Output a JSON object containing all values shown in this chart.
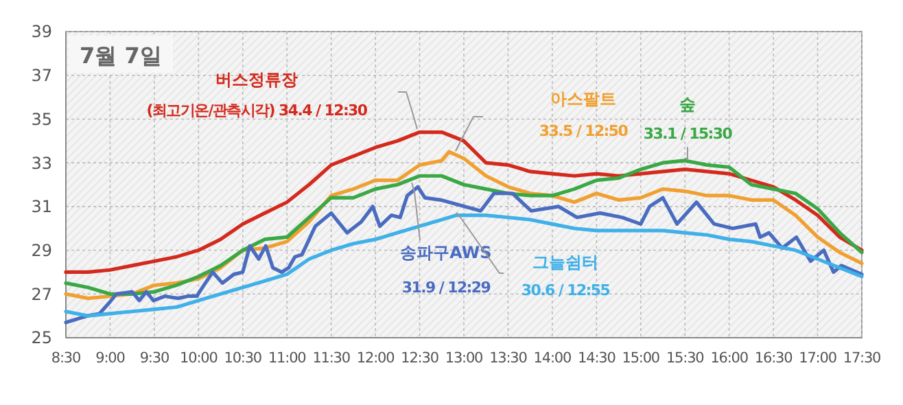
{
  "chart_data": {
    "type": "line",
    "title": "7월 7일",
    "xlim": [
      8.5,
      17.5
    ],
    "xticks": [
      {
        "value": 8.5,
        "label": "8:30"
      },
      {
        "value": 9,
        "label": "9:00"
      },
      {
        "value": 9.5,
        "label": "9:30"
      },
      {
        "value": 10,
        "label": "10:00"
      },
      {
        "value": 10.5,
        "label": "10:30"
      },
      {
        "value": 11,
        "label": "11:00"
      },
      {
        "value": 11.5,
        "label": "11:30"
      },
      {
        "value": 12,
        "label": "12:00"
      },
      {
        "value": 12.5,
        "label": "12:30"
      },
      {
        "value": 13,
        "label": "13:00"
      },
      {
        "value": 13.5,
        "label": "13:30"
      },
      {
        "value": 14,
        "label": "14:00"
      },
      {
        "value": 14.5,
        "label": "14:30"
      },
      {
        "value": 15,
        "label": "15:00"
      },
      {
        "value": 15.5,
        "label": "15:30"
      },
      {
        "value": 16,
        "label": "16:00"
      },
      {
        "value": 16.5,
        "label": "16:30"
      },
      {
        "value": 17,
        "label": "17:00"
      },
      {
        "value": 17.5,
        "label": "17:30"
      }
    ],
    "ylim": [
      25,
      39
    ],
    "yticks": [
      25,
      27,
      29,
      31,
      33,
      35,
      37,
      39
    ],
    "grid": true,
    "marker": "none",
    "line_style": "solid",
    "series": [
      {
        "name": "버스정류장",
        "color": "#d42a1e",
        "x": [
          8.5,
          8.75,
          9,
          9.25,
          9.5,
          9.75,
          10,
          10.25,
          10.5,
          10.75,
          11,
          11.25,
          11.5,
          11.75,
          12,
          12.25,
          12.5,
          12.75,
          13,
          13.25,
          13.5,
          13.75,
          14,
          14.25,
          14.5,
          14.75,
          15,
          15.25,
          15.5,
          15.75,
          16,
          16.25,
          16.5,
          16.75,
          17,
          17.25,
          17.5
        ],
        "values": [
          28.0,
          28.0,
          28.1,
          28.3,
          28.5,
          28.7,
          29.0,
          29.5,
          30.2,
          30.7,
          31.2,
          32.0,
          32.9,
          33.3,
          33.7,
          34.0,
          34.4,
          34.4,
          34.0,
          33.0,
          32.9,
          32.6,
          32.5,
          32.4,
          32.5,
          32.4,
          32.5,
          32.6,
          32.7,
          32.6,
          32.5,
          32.2,
          31.9,
          31.3,
          30.6,
          29.6,
          29.0
        ]
      },
      {
        "name": "아스팔트",
        "color": "#f0a030",
        "x": [
          8.5,
          8.75,
          9,
          9.25,
          9.5,
          9.75,
          10,
          10.25,
          10.5,
          10.75,
          11,
          11.25,
          11.5,
          11.75,
          12,
          12.25,
          12.5,
          12.75,
          12.833,
          13,
          13.25,
          13.5,
          13.75,
          14,
          14.25,
          14.5,
          14.75,
          15,
          15.25,
          15.5,
          15.75,
          16,
          16.25,
          16.5,
          16.75,
          17,
          17.25,
          17.5
        ],
        "values": [
          27.0,
          26.8,
          26.9,
          27.0,
          27.4,
          27.5,
          27.7,
          28.2,
          29.0,
          29.1,
          29.4,
          30.3,
          31.5,
          31.8,
          32.2,
          32.2,
          32.9,
          33.1,
          33.5,
          33.2,
          32.4,
          31.9,
          31.6,
          31.5,
          31.2,
          31.6,
          31.3,
          31.4,
          31.8,
          31.7,
          31.5,
          31.5,
          31.3,
          31.3,
          30.6,
          29.6,
          28.9,
          28.4
        ]
      },
      {
        "name": "숲",
        "color": "#3aa845",
        "x": [
          8.5,
          8.75,
          9,
          9.25,
          9.5,
          9.75,
          10,
          10.25,
          10.5,
          10.75,
          11,
          11.25,
          11.5,
          11.75,
          12,
          12.25,
          12.5,
          12.75,
          13,
          13.25,
          13.5,
          13.75,
          14,
          14.25,
          14.5,
          14.75,
          15,
          15.25,
          15.5,
          15.75,
          16,
          16.25,
          16.5,
          16.75,
          17,
          17.25,
          17.5
        ],
        "values": [
          27.5,
          27.3,
          27.0,
          27.0,
          27.1,
          27.4,
          27.8,
          28.3,
          29.0,
          29.5,
          29.6,
          30.5,
          31.4,
          31.4,
          31.8,
          32.0,
          32.4,
          32.4,
          32.0,
          31.8,
          31.6,
          31.5,
          31.5,
          31.8,
          32.2,
          32.3,
          32.7,
          33.0,
          33.1,
          32.9,
          32.8,
          32.0,
          31.8,
          31.6,
          30.9,
          29.8,
          28.9
        ]
      },
      {
        "name": "송파구AWS",
        "color": "#4a6cc0",
        "x": [
          8.5,
          8.74,
          8.88,
          8.99,
          9.07,
          9.25,
          9.33,
          9.41,
          9.49,
          9.62,
          9.77,
          9.88,
          9.98,
          10.06,
          10.16,
          10.27,
          10.4,
          10.5,
          10.58,
          10.68,
          10.76,
          10.84,
          10.94,
          11.02,
          11.09,
          11.17,
          11.32,
          11.5,
          11.68,
          11.84,
          11.97,
          12.05,
          12.18,
          12.28,
          12.36,
          12.48,
          12.56,
          12.74,
          13.19,
          13.34,
          13.55,
          13.76,
          14.07,
          14.28,
          14.54,
          14.79,
          15.0,
          15.1,
          15.25,
          15.41,
          15.63,
          15.83,
          16.04,
          16.3,
          16.35,
          16.45,
          16.6,
          16.76,
          16.92,
          17.07,
          17.18,
          17.27,
          17.5
        ],
        "values": [
          25.7,
          26.0,
          26.1,
          26.6,
          27.0,
          27.1,
          26.7,
          27.1,
          26.7,
          26.9,
          26.8,
          26.9,
          26.9,
          27.4,
          28.0,
          27.5,
          27.9,
          28.0,
          29.2,
          28.6,
          29.2,
          28.2,
          28.0,
          28.2,
          28.7,
          28.8,
          30.1,
          30.7,
          29.8,
          30.3,
          31.0,
          30.1,
          30.6,
          30.5,
          31.5,
          31.9,
          31.4,
          31.3,
          30.8,
          31.6,
          31.6,
          30.8,
          31.0,
          30.5,
          30.7,
          30.5,
          30.2,
          31.0,
          31.4,
          30.2,
          31.2,
          30.2,
          30.0,
          30.2,
          29.6,
          29.8,
          29.1,
          29.6,
          28.5,
          29.0,
          28.0,
          28.3,
          27.9
        ]
      },
      {
        "name": "그늘쉼터",
        "color": "#3fb0e8",
        "x": [
          8.5,
          8.75,
          9,
          9.25,
          9.5,
          9.75,
          10,
          10.25,
          10.5,
          10.75,
          11,
          11.25,
          11.5,
          11.75,
          12,
          12.25,
          12.5,
          12.75,
          12.917,
          13.25,
          13.5,
          13.75,
          14,
          14.25,
          14.5,
          14.75,
          15,
          15.25,
          15.5,
          15.75,
          16,
          16.25,
          16.5,
          16.75,
          17,
          17.25,
          17.5
        ],
        "values": [
          26.2,
          26.0,
          26.1,
          26.2,
          26.3,
          26.4,
          26.7,
          27.0,
          27.3,
          27.6,
          27.9,
          28.6,
          29.0,
          29.3,
          29.5,
          29.8,
          30.1,
          30.4,
          30.6,
          30.6,
          30.5,
          30.4,
          30.2,
          30.0,
          29.9,
          29.9,
          29.9,
          29.9,
          29.8,
          29.7,
          29.5,
          29.4,
          29.2,
          29.0,
          28.6,
          28.2,
          27.8
        ]
      }
    ],
    "annotations": [
      "(최고기온/관측시각) 34.4 / 12:30",
      "33.5 / 12:50",
      {
        "text": "33.1 / 15:30",
        "x": 15.5,
        "y": 33.1
      },
      "31.9 / 12:29",
      {
        "text": "30.6 / 12:55",
        "x": 12.917,
        "y": 30.6
      }
    ]
  }
}
